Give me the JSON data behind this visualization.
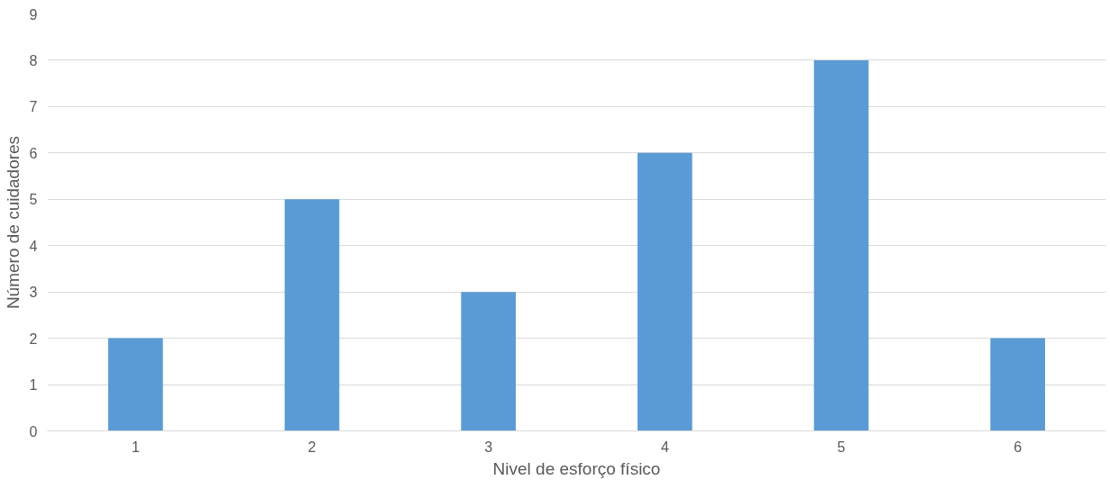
{
  "chart_data": {
    "type": "bar",
    "xlabel": "Nivel de esforço físico",
    "ylabel": "Número de cuidadores",
    "categories": [
      "1",
      "2",
      "3",
      "4",
      "5",
      "6"
    ],
    "values": [
      2,
      5,
      3,
      6,
      8,
      2
    ],
    "color": "#5b9bd5",
    "ylim": [
      0,
      9
    ],
    "yticks": [
      0,
      1,
      2,
      3,
      4,
      5,
      6,
      7,
      8,
      9
    ],
    "grid": "y"
  }
}
